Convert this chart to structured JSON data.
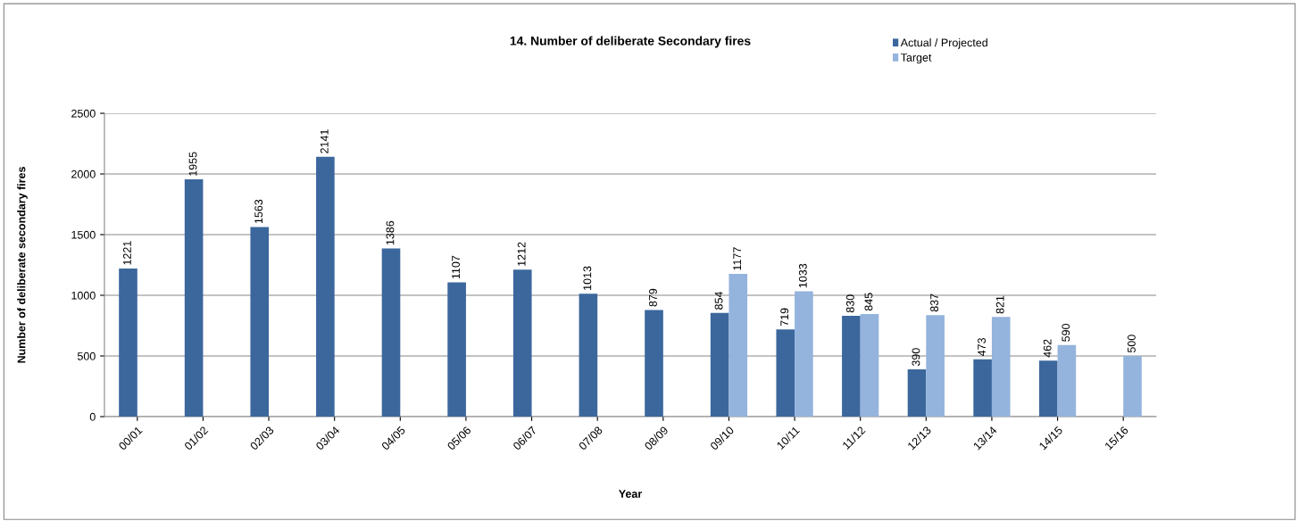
{
  "chart_data": {
    "type": "bar",
    "title": "14. Number of deliberate Secondary fires",
    "xlabel": "Year",
    "ylabel": "Number of deliberate secondary fires",
    "categories": [
      "00/01",
      "01/02",
      "02/03",
      "03/04",
      "04/05",
      "05/06",
      "06/07",
      "07/08",
      "08/09",
      "09/10",
      "10/11",
      "11/12",
      "12/13",
      "13/14",
      "14/15",
      "15/16"
    ],
    "series": [
      {
        "name": "Actual / Projected",
        "color": "#3b679c",
        "values": [
          1221,
          1955,
          1563,
          2141,
          1386,
          1107,
          1212,
          1013,
          879,
          854,
          719,
          830,
          390,
          473,
          462,
          null
        ]
      },
      {
        "name": "Target",
        "color": "#94b3dd",
        "values": [
          null,
          null,
          null,
          null,
          null,
          null,
          null,
          null,
          null,
          1177,
          1033,
          845,
          837,
          821,
          590,
          500
        ]
      }
    ],
    "ylim": [
      0,
      2500
    ],
    "yticks": [
      0,
      500,
      1000,
      1500,
      2000,
      2500
    ],
    "grid": "y",
    "legend": "top right",
    "data_labels": true
  }
}
